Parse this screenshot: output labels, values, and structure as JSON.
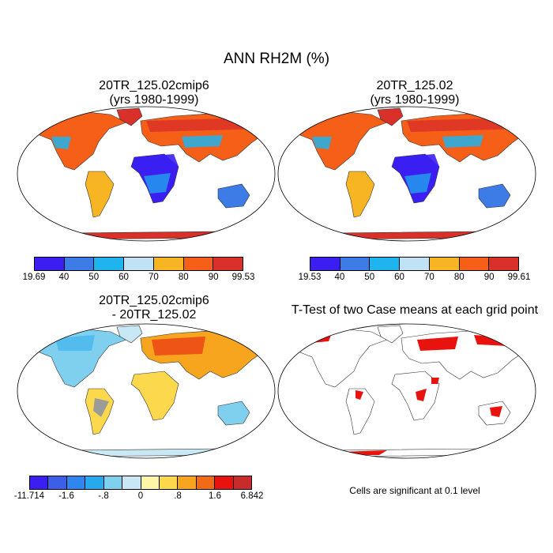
{
  "figure": {
    "title": "ANN RH2M (%)"
  },
  "panels": [
    {
      "id": "p1",
      "title_line1": "20TR_125.02cmip6",
      "title_line2": "(yrs 1980-1999)",
      "kind": "climatology"
    },
    {
      "id": "p2",
      "title_line1": "20TR_125.02",
      "title_line2": "(yrs 1980-1999)",
      "kind": "climatology"
    },
    {
      "id": "p3",
      "title_line1": "20TR_125.02cmip6",
      "title_line2": "- 20TR_125.02",
      "kind": "difference"
    },
    {
      "id": "p4",
      "title_line1": "T-Test of two Case means at each grid point",
      "kind": "significance",
      "note": "Cells are significant at 0.1 level"
    }
  ],
  "colorbars": {
    "p1": {
      "colors": [
        "#3b1ff2",
        "#3d7be6",
        "#1eb4ee",
        "#bfe3f5",
        "#f7b423",
        "#f55f18",
        "#d9302a"
      ],
      "labels": [
        "19.69",
        "40",
        "50",
        "60",
        "70",
        "80",
        "90",
        "99.53"
      ]
    },
    "p2": {
      "colors": [
        "#3b1ff2",
        "#3d7be6",
        "#1eb4ee",
        "#bfe3f5",
        "#f7b423",
        "#f55f18",
        "#d9302a"
      ],
      "labels": [
        "19.53",
        "40",
        "50",
        "60",
        "70",
        "80",
        "90",
        "99.61"
      ]
    },
    "p3": {
      "colors": [
        "#3b1ff2",
        "#3c5fe8",
        "#2f86f0",
        "#27a9ee",
        "#7fcfee",
        "#c9e8f6",
        "#fff5a6",
        "#fbd84c",
        "#f7a51e",
        "#f36a16",
        "#e8120f",
        "#c92a2a"
      ],
      "labels": [
        "-11.714",
        "-1.6",
        "-.8",
        "0",
        ".8",
        "1.6",
        "6.842"
      ],
      "label_slots": [
        0,
        2,
        4,
        6,
        8,
        10,
        12
      ]
    }
  }
}
